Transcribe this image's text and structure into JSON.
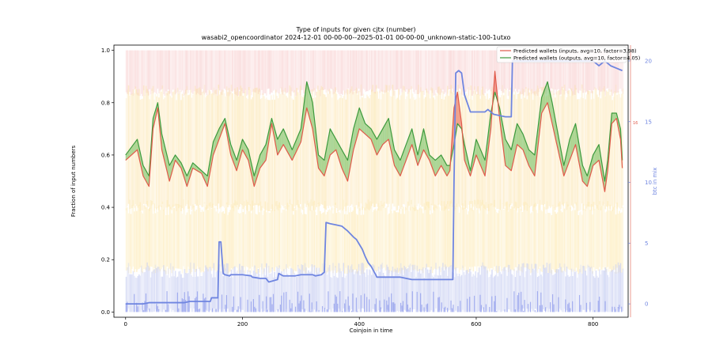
{
  "chart_data": {
    "type": "line",
    "title": "Type of inputs for given cjtx (number)",
    "subtitle": "wasabi2_opencoordinator 2024-12-01 00-00-00--2025-01-01 00-00-00_unknown-static-100-1utxo",
    "xlabel": "Coinjoin in time",
    "ylabel": "Fraction of input numbers",
    "y2label": "btc in mix",
    "xlim": [
      -20,
      860
    ],
    "ylim": [
      -0.02,
      1.02
    ],
    "y2lim": [
      -1.1,
      21.3
    ],
    "x_ticks": [
      "0",
      "200",
      "400",
      "600",
      "800"
    ],
    "y_ticks": [
      "0.0",
      "0.2",
      "0.4",
      "0.6",
      "0.8",
      "1.0"
    ],
    "y2_ticks": [
      "0",
      "5",
      "10",
      "15",
      "20"
    ],
    "y3_tick": "16",
    "grid": false,
    "legend_position": "top-right",
    "colors": {
      "inputs": "#e05a4a",
      "outputs": "#3d9a3d",
      "btc": "#6f85e0",
      "fill_green": "#6fbf5f",
      "fill_red": "#e8604f"
    },
    "series": [
      {
        "name": "Predicted wallets (inputs, avg=10, factor=3.98)",
        "x": [
          0,
          20,
          30,
          40,
          47,
          55,
          62,
          75,
          85,
          95,
          105,
          115,
          130,
          140,
          150,
          160,
          170,
          180,
          190,
          200,
          210,
          220,
          230,
          240,
          250,
          260,
          270,
          285,
          300,
          310,
          320,
          330,
          340,
          350,
          360,
          370,
          380,
          390,
          400,
          410,
          420,
          430,
          440,
          450,
          460,
          470,
          480,
          490,
          500,
          510,
          520,
          530,
          540,
          550,
          555,
          562,
          568,
          575,
          580,
          590,
          600,
          615,
          625,
          632,
          640,
          650,
          660,
          670,
          680,
          690,
          700,
          712,
          722,
          730,
          740,
          750,
          760,
          770,
          782,
          790,
          800,
          810,
          820,
          825,
          832,
          840,
          847,
          850
        ],
        "y": [
          0.58,
          0.62,
          0.52,
          0.48,
          0.7,
          0.78,
          0.62,
          0.5,
          0.58,
          0.55,
          0.48,
          0.55,
          0.53,
          0.48,
          0.6,
          0.66,
          0.72,
          0.6,
          0.54,
          0.62,
          0.58,
          0.48,
          0.55,
          0.58,
          0.72,
          0.6,
          0.64,
          0.58,
          0.65,
          0.78,
          0.7,
          0.55,
          0.52,
          0.6,
          0.62,
          0.55,
          0.5,
          0.62,
          0.7,
          0.68,
          0.66,
          0.6,
          0.64,
          0.66,
          0.56,
          0.52,
          0.58,
          0.64,
          0.56,
          0.62,
          0.58,
          0.52,
          0.56,
          0.52,
          0.54,
          0.78,
          0.84,
          0.72,
          0.58,
          0.52,
          0.6,
          0.52,
          0.7,
          0.92,
          0.74,
          0.56,
          0.54,
          0.64,
          0.62,
          0.56,
          0.52,
          0.76,
          0.8,
          0.72,
          0.62,
          0.52,
          0.58,
          0.64,
          0.5,
          0.48,
          0.56,
          0.58,
          0.46,
          0.54,
          0.72,
          0.74,
          0.66,
          0.55
        ]
      },
      {
        "name": "Predicted wallets (outputs, avg=10, factor=4.05)",
        "x": [
          0,
          20,
          30,
          40,
          47,
          55,
          62,
          75,
          85,
          95,
          105,
          115,
          130,
          140,
          150,
          160,
          170,
          180,
          190,
          200,
          210,
          220,
          230,
          240,
          250,
          260,
          270,
          285,
          300,
          310,
          320,
          330,
          340,
          350,
          360,
          370,
          380,
          390,
          400,
          410,
          420,
          430,
          440,
          450,
          460,
          470,
          480,
          490,
          500,
          510,
          520,
          530,
          540,
          550,
          555,
          562,
          568,
          575,
          580,
          590,
          600,
          615,
          625,
          632,
          640,
          650,
          660,
          670,
          680,
          690,
          700,
          712,
          722,
          730,
          740,
          750,
          760,
          770,
          782,
          790,
          800,
          810,
          820,
          825,
          832,
          840,
          847,
          850
        ],
        "y": [
          0.6,
          0.66,
          0.56,
          0.52,
          0.74,
          0.8,
          0.68,
          0.56,
          0.6,
          0.57,
          0.52,
          0.57,
          0.54,
          0.52,
          0.65,
          0.7,
          0.74,
          0.64,
          0.58,
          0.66,
          0.62,
          0.52,
          0.6,
          0.64,
          0.74,
          0.66,
          0.7,
          0.62,
          0.7,
          0.88,
          0.8,
          0.6,
          0.58,
          0.7,
          0.66,
          0.62,
          0.58,
          0.7,
          0.78,
          0.72,
          0.7,
          0.66,
          0.7,
          0.74,
          0.62,
          0.58,
          0.64,
          0.7,
          0.6,
          0.7,
          0.6,
          0.58,
          0.6,
          0.56,
          0.56,
          0.64,
          0.72,
          0.7,
          0.64,
          0.54,
          0.66,
          0.58,
          0.76,
          0.84,
          0.78,
          0.66,
          0.62,
          0.72,
          0.68,
          0.62,
          0.6,
          0.82,
          0.88,
          0.8,
          0.68,
          0.56,
          0.66,
          0.72,
          0.56,
          0.52,
          0.6,
          0.64,
          0.5,
          0.58,
          0.76,
          0.76,
          0.7,
          0.58
        ]
      },
      {
        "name": "btc in mix",
        "axis": "right",
        "x": [
          0,
          30,
          40,
          60,
          80,
          100,
          110,
          125,
          127,
          145,
          147,
          158,
          160,
          163,
          167,
          170,
          178,
          180,
          200,
          215,
          217,
          230,
          240,
          245,
          260,
          262,
          270,
          290,
          300,
          320,
          325,
          335,
          340,
          343,
          350,
          360,
          370,
          375,
          380,
          390,
          395,
          400,
          405,
          410,
          415,
          420,
          428,
          430,
          440,
          460,
          470,
          480,
          490,
          500,
          520,
          530,
          540,
          545,
          550,
          555,
          560,
          562,
          565,
          570,
          575,
          580,
          590,
          600,
          610,
          615,
          620,
          630,
          650,
          660,
          662,
          670,
          700,
          750,
          800,
          805,
          810,
          815,
          820,
          830,
          840,
          850
        ],
        "y": [
          0,
          0,
          0.1,
          0.1,
          0.1,
          0.1,
          0.2,
          0.2,
          0.2,
          0.2,
          0.5,
          0.5,
          5.1,
          5.1,
          2.5,
          2.4,
          2.3,
          2.4,
          2.4,
          2.3,
          2.2,
          2.1,
          2.1,
          1.8,
          2.0,
          2.5,
          2.3,
          2.3,
          2.4,
          2.4,
          2.3,
          2.4,
          2.6,
          6.7,
          6.6,
          6.5,
          6.4,
          6.2,
          6.0,
          5.5,
          5.3,
          4.9,
          4.5,
          3.9,
          3.4,
          3.1,
          2.4,
          2.2,
          2.2,
          2.2,
          2.2,
          2.1,
          2.0,
          2.0,
          2.0,
          2.0,
          2.0,
          2.0,
          2.0,
          2.0,
          2.0,
          10.0,
          19.0,
          19.2,
          19.0,
          17.2,
          15.8,
          15.8,
          15.8,
          15.8,
          16.0,
          15.6,
          15.4,
          15.4,
          20.0,
          20.0,
          20.0,
          20.0,
          20.0,
          19.8,
          19.6,
          19.8,
          20.0,
          19.6,
          19.4,
          19.2
        ]
      }
    ]
  },
  "legend": {
    "inputs_label": "Predicted wallets (inputs, avg=10, factor=3.98)",
    "outputs_label": "Predicted wallets (outputs, avg=10, factor=4.05)"
  }
}
